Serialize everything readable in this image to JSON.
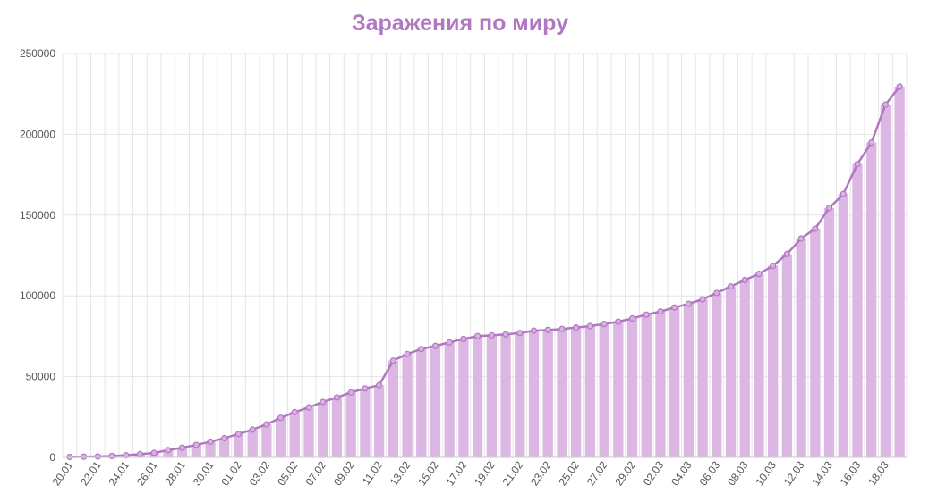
{
  "chart_data": {
    "type": "bar",
    "title": "Заражения по миру",
    "xlabel": "",
    "ylabel": "",
    "ylim": [
      0,
      250000
    ],
    "yticks": [
      0,
      50000,
      100000,
      150000,
      200000,
      250000
    ],
    "grid": true,
    "legend": "none",
    "colors": {
      "bar": "#dcb7e3",
      "line": "#b178c2",
      "title": "#b178c2",
      "grid": "#e5e5e5",
      "axis": "#cccccc"
    },
    "categories": [
      "20.01",
      "21.01",
      "22.01",
      "23.01",
      "24.01",
      "25.01",
      "26.01",
      "27.01",
      "28.01",
      "29.01",
      "30.01",
      "31.01",
      "01.02",
      "02.02",
      "03.02",
      "04.02",
      "05.02",
      "06.02",
      "07.02",
      "08.02",
      "09.02",
      "10.02",
      "11.02",
      "12.02",
      "13.02",
      "14.02",
      "15.02",
      "16.02",
      "17.02",
      "18.02",
      "19.02",
      "20.02",
      "21.02",
      "22.02",
      "23.02",
      "24.02",
      "25.02",
      "26.02",
      "27.02",
      "28.02",
      "29.02",
      "01.03",
      "02.03",
      "03.03",
      "04.03",
      "05.03",
      "06.03",
      "07.03",
      "08.03",
      "09.03",
      "10.03",
      "11.03",
      "12.03",
      "13.03",
      "14.03",
      "15.03",
      "16.03",
      "17.03",
      "18.03",
      "19.03"
    ],
    "tick_labels": [
      "20.01",
      "22.01",
      "24.01",
      "26.01",
      "28.01",
      "30.01",
      "01.02",
      "03.02",
      "05.02",
      "07.02",
      "09.02",
      "11.02",
      "13.02",
      "15.02",
      "17.02",
      "19.02",
      "21.02",
      "23.02",
      "25.02",
      "27.02",
      "29.02",
      "02.03",
      "04.03",
      "06.03",
      "08.03",
      "10.03",
      "12.03",
      "14.03",
      "16.03",
      "18.03"
    ],
    "series": [
      {
        "kind": "bar+line",
        "values": [
          280,
          440,
          580,
          850,
          1320,
          2010,
          2800,
          4500,
          6000,
          7700,
          9700,
          11900,
          14500,
          17200,
          20400,
          24500,
          28000,
          30900,
          34300,
          37100,
          40200,
          42700,
          44700,
          59900,
          64000,
          67100,
          69000,
          71200,
          73300,
          75100,
          75600,
          76200,
          77000,
          78500,
          78900,
          79500,
          80400,
          81300,
          82600,
          84000,
          86000,
          88400,
          90300,
          92800,
          95100,
          97900,
          101800,
          105800,
          109800,
          113600,
          118600,
          125900,
          135500,
          141600,
          154400,
          163100,
          181600,
          194900,
          218400,
          229600
        ]
      }
    ]
  }
}
